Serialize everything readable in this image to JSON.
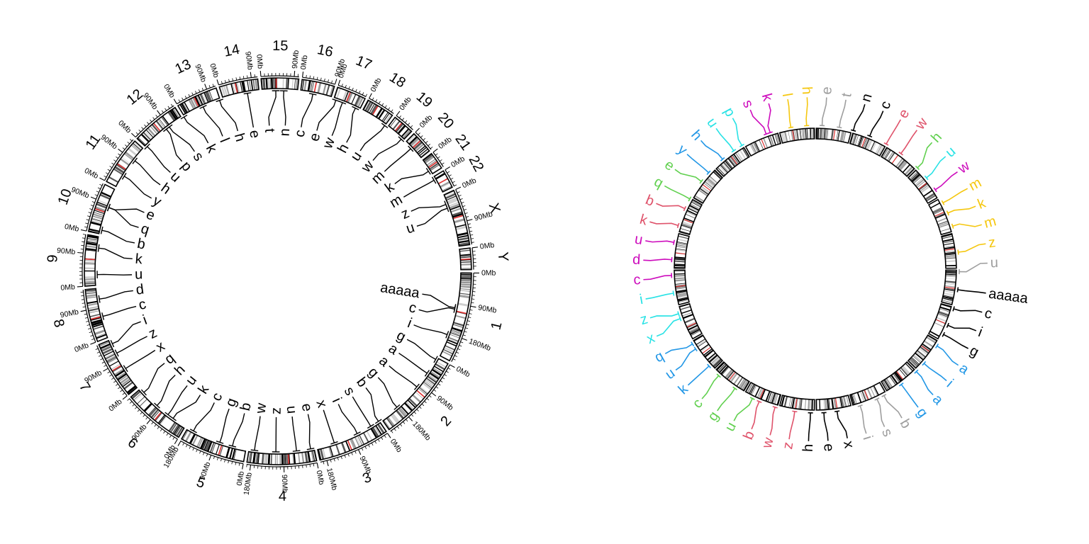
{
  "colors": {
    "ideogram_border": "#000000",
    "centromere": "#e03030",
    "acen_blue": "#7080b0",
    "palette": [
      "#000000",
      "#DF536B",
      "#61D04F",
      "#2297E6",
      "#28E2E5",
      "#CD0BBC",
      "#F5C710",
      "#9E9E9E"
    ]
  },
  "left_plot": {
    "chromosomes": [
      {
        "name": "1",
        "size_mb": 249
      },
      {
        "name": "2",
        "size_mb": 243
      },
      {
        "name": "3",
        "size_mb": 198
      },
      {
        "name": "4",
        "size_mb": 191
      },
      {
        "name": "5",
        "size_mb": 181
      },
      {
        "name": "6",
        "size_mb": 171
      },
      {
        "name": "7",
        "size_mb": 159
      },
      {
        "name": "8",
        "size_mb": 146
      },
      {
        "name": "9",
        "size_mb": 141
      },
      {
        "name": "10",
        "size_mb": 136
      },
      {
        "name": "11",
        "size_mb": 135
      },
      {
        "name": "12",
        "size_mb": 134
      },
      {
        "name": "13",
        "size_mb": 115
      },
      {
        "name": "14",
        "size_mb": 107
      },
      {
        "name": "15",
        "size_mb": 103
      },
      {
        "name": "16",
        "size_mb": 90
      },
      {
        "name": "17",
        "size_mb": 81
      },
      {
        "name": "18",
        "size_mb": 78
      },
      {
        "name": "19",
        "size_mb": 59
      },
      {
        "name": "20",
        "size_mb": 63
      },
      {
        "name": "21",
        "size_mb": 48
      },
      {
        "name": "22",
        "size_mb": 51
      },
      {
        "name": "X",
        "size_mb": 155
      },
      {
        "name": "Y",
        "size_mb": 59
      }
    ],
    "axis_labels": {
      "zero": "0Mb",
      "mid": "90Mb",
      "far": "180Mb"
    },
    "labels_start": [
      "aaaaa",
      "c",
      "i",
      "g",
      "a",
      "a",
      "g",
      "b",
      "s",
      "i",
      "x",
      "e",
      "u",
      "z",
      "w",
      "b",
      "g",
      "c",
      "k",
      "u",
      "h",
      "q",
      "x",
      "z",
      "i",
      "c",
      "d",
      "u",
      "k",
      "b",
      "q",
      "e",
      "y",
      "h",
      "u",
      "p",
      "s",
      "k",
      "l",
      "h",
      "e",
      "t",
      "n",
      "c",
      "e",
      "w",
      "h",
      "u",
      "w",
      "m",
      "k",
      "m",
      "z",
      "u"
    ]
  },
  "right_plot": {
    "labels": [
      {
        "text": "aaaaa",
        "color": 0
      },
      {
        "text": "c",
        "color": 0
      },
      {
        "text": "i",
        "color": 0
      },
      {
        "text": "g",
        "color": 0
      },
      {
        "text": "a",
        "color": 3
      },
      {
        "text": "i",
        "color": 3
      },
      {
        "text": "a",
        "color": 3
      },
      {
        "text": "g",
        "color": 3
      },
      {
        "text": "b",
        "color": 7
      },
      {
        "text": "s",
        "color": 7
      },
      {
        "text": "i",
        "color": 7
      },
      {
        "text": "x",
        "color": 0
      },
      {
        "text": "e",
        "color": 0
      },
      {
        "text": "h",
        "color": 0
      },
      {
        "text": "z",
        "color": 1
      },
      {
        "text": "w",
        "color": 1
      },
      {
        "text": "b",
        "color": 1
      },
      {
        "text": "u",
        "color": 2
      },
      {
        "text": "g",
        "color": 2
      },
      {
        "text": "c",
        "color": 2
      },
      {
        "text": "k",
        "color": 3
      },
      {
        "text": "u",
        "color": 3
      },
      {
        "text": "q",
        "color": 3
      },
      {
        "text": "x",
        "color": 4
      },
      {
        "text": "z",
        "color": 4
      },
      {
        "text": "i",
        "color": 4
      },
      {
        "text": "c",
        "color": 5
      },
      {
        "text": "d",
        "color": 5
      },
      {
        "text": "u",
        "color": 5
      },
      {
        "text": "k",
        "color": 1
      },
      {
        "text": "b",
        "color": 1
      },
      {
        "text": "q",
        "color": 2
      },
      {
        "text": "e",
        "color": 2
      },
      {
        "text": "y",
        "color": 3
      },
      {
        "text": "h",
        "color": 3
      },
      {
        "text": "u",
        "color": 4
      },
      {
        "text": "p",
        "color": 4
      },
      {
        "text": "s",
        "color": 5
      },
      {
        "text": "k",
        "color": 5
      },
      {
        "text": "l",
        "color": 6
      },
      {
        "text": "h",
        "color": 6
      },
      {
        "text": "e",
        "color": 7
      },
      {
        "text": "t",
        "color": 7
      },
      {
        "text": "n",
        "color": 0
      },
      {
        "text": "c",
        "color": 0
      },
      {
        "text": "e",
        "color": 1
      },
      {
        "text": "w",
        "color": 1
      },
      {
        "text": "h",
        "color": 2
      },
      {
        "text": "u",
        "color": 4
      },
      {
        "text": "w",
        "color": 5
      },
      {
        "text": "m",
        "color": 6
      },
      {
        "text": "k",
        "color": 6
      },
      {
        "text": "m",
        "color": 6
      },
      {
        "text": "z",
        "color": 6
      },
      {
        "text": "u",
        "color": 7
      }
    ]
  }
}
